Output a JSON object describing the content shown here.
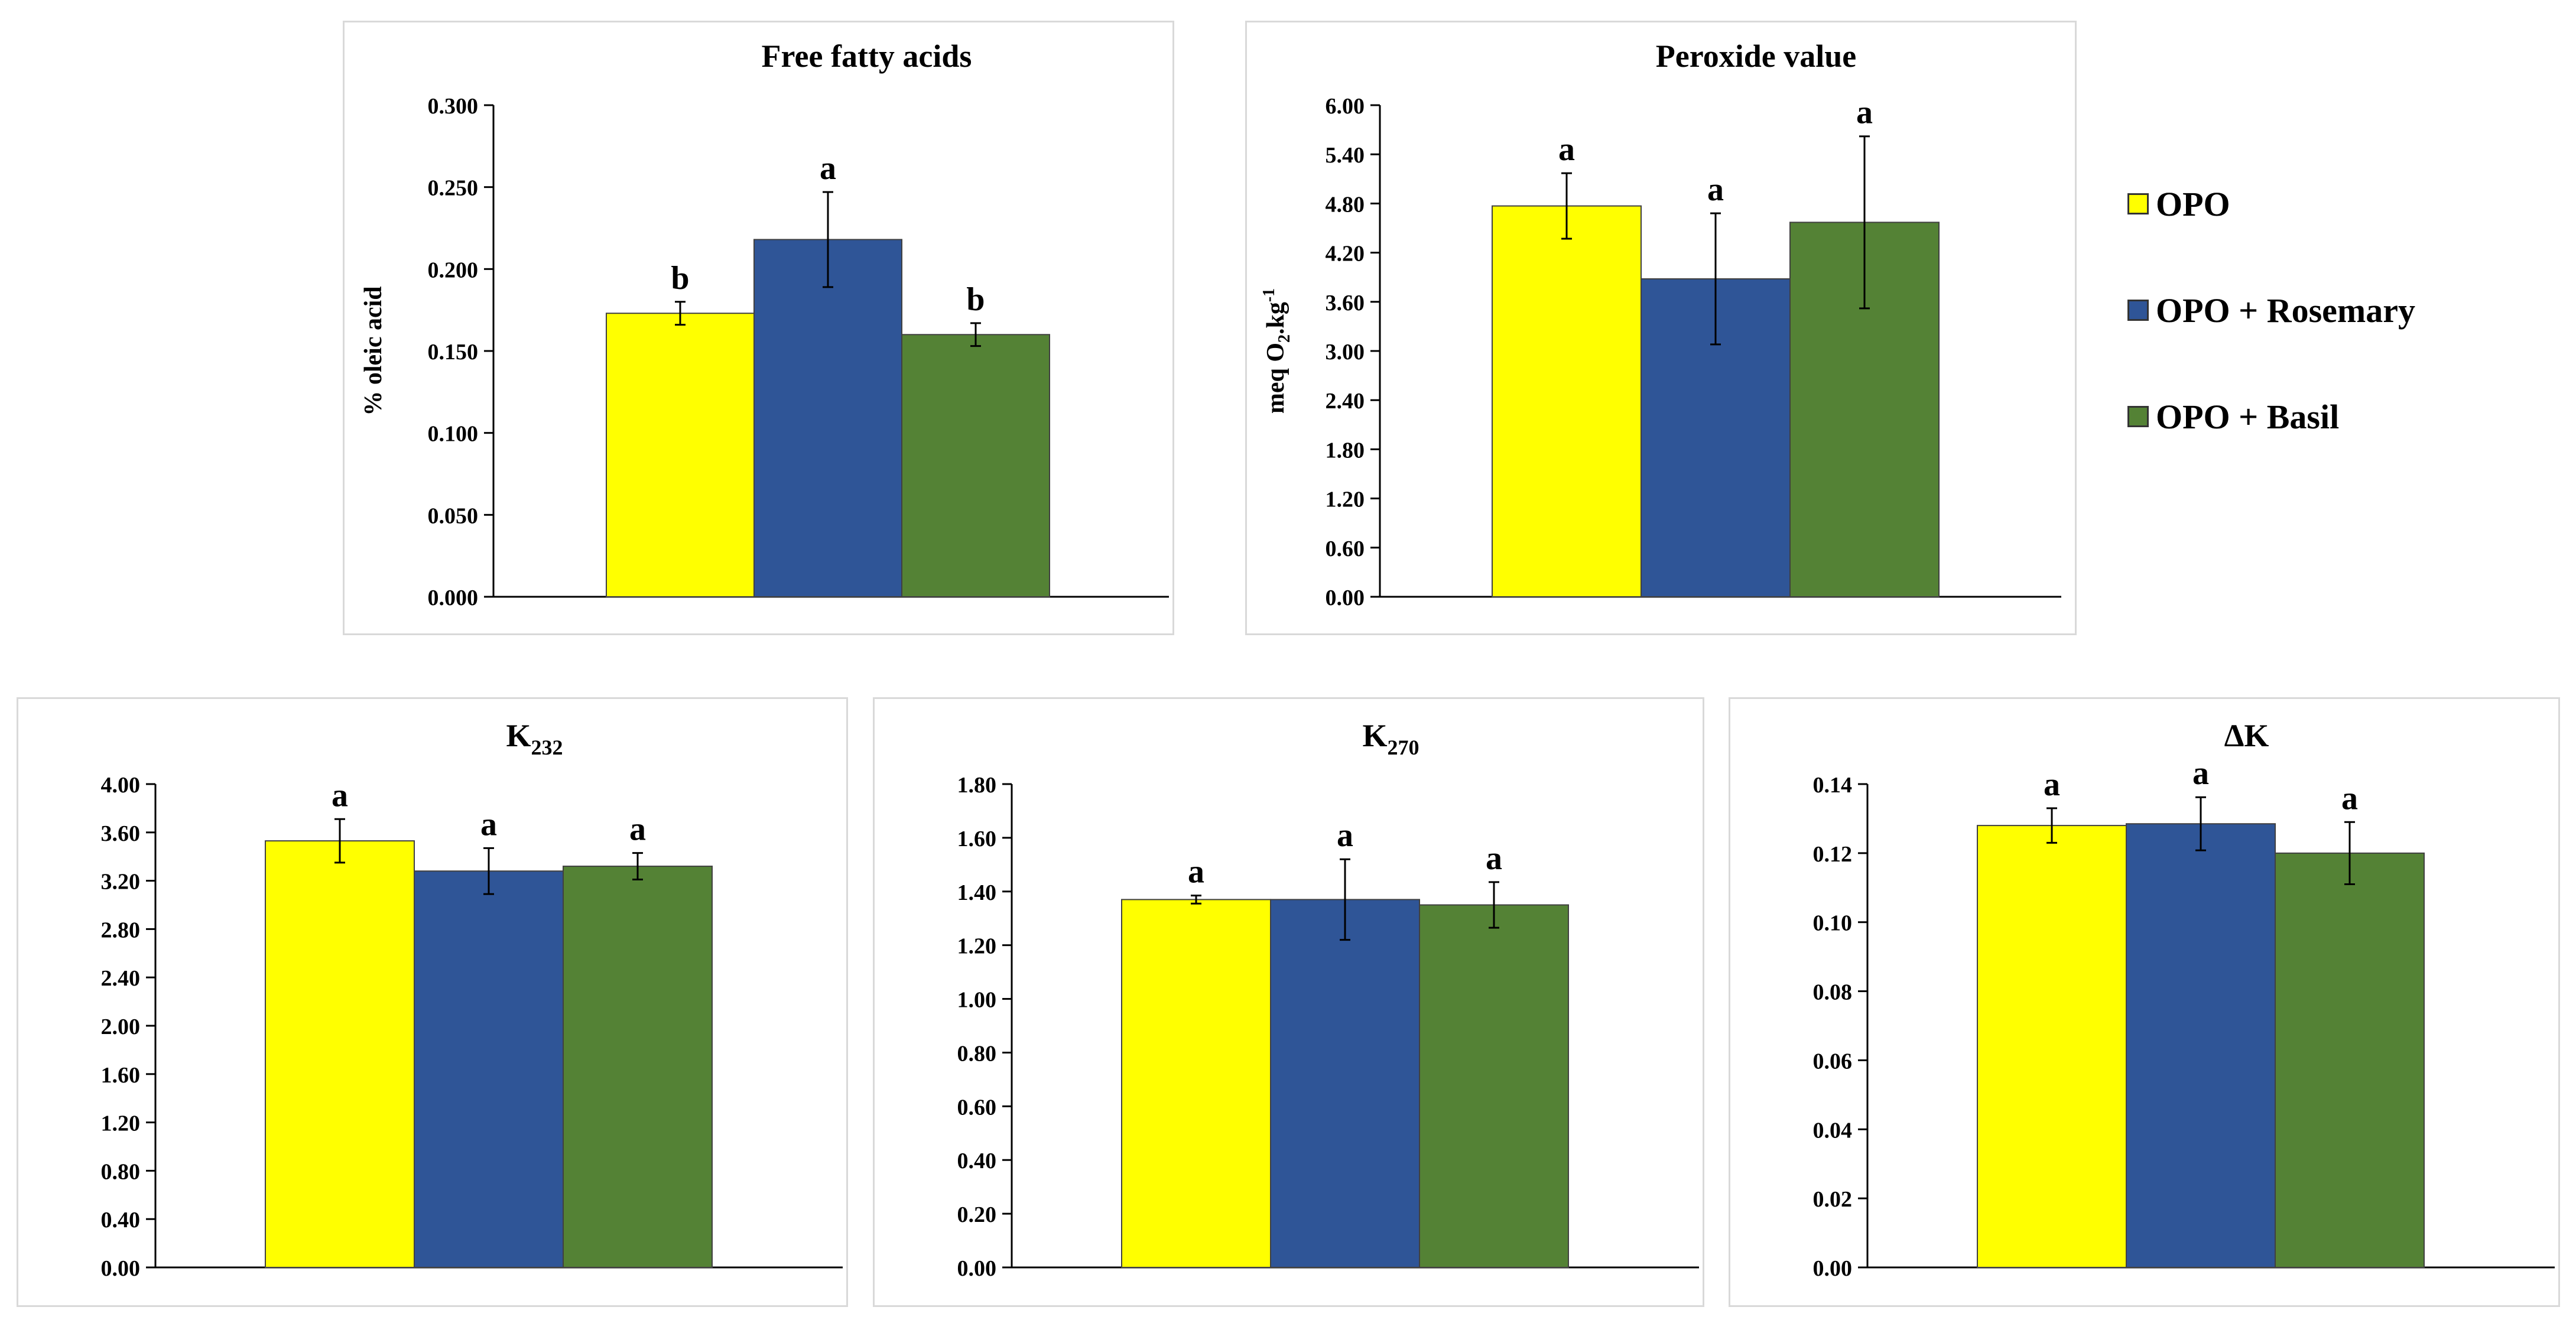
{
  "series_names": [
    "OPO",
    "OPO + Rosemary",
    "OPO + Basil"
  ],
  "colors": {
    "OPO": "#ffff00",
    "OPO + Rosemary": "#2f5597",
    "OPO + Basil": "#548235",
    "axis": "#000000",
    "errorbar": "#000000"
  },
  "chart_data": [
    {
      "type": "bar",
      "title": "Free fatty acids",
      "ylabel": "% oleic acid",
      "xlabel": "",
      "ylim": [
        0,
        0.3
      ],
      "ytick_values": [
        0,
        0.05,
        0.1,
        0.15,
        0.2,
        0.25,
        0.3
      ],
      "ytick_labels": [
        "0.000",
        "0.050",
        "0.100",
        "0.150",
        "0.200",
        "0.250",
        "0.300"
      ],
      "series": [
        {
          "name": "OPO",
          "values": [
            0.173
          ],
          "errors": [
            0.007
          ],
          "labels": [
            "b"
          ]
        },
        {
          "name": "OPO + Rosemary",
          "values": [
            0.218
          ],
          "errors": [
            0.029
          ],
          "labels": [
            "a"
          ]
        },
        {
          "name": "OPO + Basil",
          "values": [
            0.16
          ],
          "errors": [
            0.007
          ],
          "labels": [
            "b"
          ]
        }
      ]
    },
    {
      "type": "bar",
      "title": "Peroxide value",
      "ylabel": "meq O2.kg-1",
      "ylabel_parts": {
        "base": "meq O",
        "sub": "2",
        "mid": ".kg",
        "sup": "-1"
      },
      "xlabel": "",
      "ylim": [
        0,
        6
      ],
      "ytick_values": [
        0,
        0.6,
        1.2,
        1.8,
        2.4,
        3.0,
        3.6,
        4.2,
        4.8,
        5.4,
        6.0
      ],
      "ytick_labels": [
        "0.00",
        "0.60",
        "1.20",
        "1.80",
        "2.40",
        "3.00",
        "3.60",
        "4.20",
        "4.80",
        "5.40",
        "6.00"
      ],
      "series": [
        {
          "name": "OPO",
          "values": [
            4.77
          ],
          "errors": [
            0.4
          ],
          "labels": [
            "a"
          ]
        },
        {
          "name": "OPO + Rosemary",
          "values": [
            3.88
          ],
          "errors": [
            0.8
          ],
          "labels": [
            "a"
          ]
        },
        {
          "name": "OPO + Basil",
          "values": [
            4.57
          ],
          "errors": [
            1.05
          ],
          "labels": [
            "a"
          ]
        }
      ]
    },
    {
      "type": "bar",
      "title": "K232",
      "title_parts": {
        "base": "K",
        "sub": "232"
      },
      "ylabel": "",
      "xlabel": "",
      "ylim": [
        0,
        4
      ],
      "ytick_values": [
        0,
        0.4,
        0.8,
        1.2,
        1.6,
        2.0,
        2.4,
        2.8,
        3.2,
        3.6,
        4.0
      ],
      "ytick_labels": [
        "0.00",
        "0.40",
        "0.80",
        "1.20",
        "1.60",
        "2.00",
        "2.40",
        "2.80",
        "3.20",
        "3.60",
        "4.00"
      ],
      "series": [
        {
          "name": "OPO",
          "values": [
            3.53
          ],
          "errors": [
            0.18
          ],
          "labels": [
            "a"
          ]
        },
        {
          "name": "OPO + Rosemary",
          "values": [
            3.28
          ],
          "errors": [
            0.19
          ],
          "labels": [
            "a"
          ]
        },
        {
          "name": "OPO + Basil",
          "values": [
            3.32
          ],
          "errors": [
            0.11
          ],
          "labels": [
            "a"
          ]
        }
      ]
    },
    {
      "type": "bar",
      "title": "K270",
      "title_parts": {
        "base": "K",
        "sub": "270"
      },
      "ylabel": "",
      "xlabel": "",
      "ylim": [
        0,
        1.8
      ],
      "ytick_values": [
        0,
        0.2,
        0.4,
        0.6,
        0.8,
        1.0,
        1.2,
        1.4,
        1.6,
        1.8
      ],
      "ytick_labels": [
        "0.00",
        "0.20",
        "0.40",
        "0.60",
        "0.80",
        "1.00",
        "1.20",
        "1.40",
        "1.60",
        "1.80"
      ],
      "series": [
        {
          "name": "OPO",
          "values": [
            1.37
          ],
          "errors": [
            0.015
          ],
          "labels": [
            "a"
          ]
        },
        {
          "name": "OPO + Rosemary",
          "values": [
            1.37
          ],
          "errors": [
            0.15
          ],
          "labels": [
            "a"
          ]
        },
        {
          "name": "OPO + Basil",
          "values": [
            1.35
          ],
          "errors": [
            0.085
          ],
          "labels": [
            "a"
          ]
        }
      ]
    },
    {
      "type": "bar",
      "title": "ΔK",
      "ylabel": "",
      "xlabel": "",
      "ylim": [
        0,
        0.14
      ],
      "ytick_values": [
        0,
        0.02,
        0.04,
        0.06,
        0.08,
        0.1,
        0.12,
        0.14
      ],
      "ytick_labels": [
        "0.00",
        "0.02",
        "0.04",
        "0.06",
        "0.08",
        "0.10",
        "0.12",
        "0.14"
      ],
      "series": [
        {
          "name": "OPO",
          "values": [
            0.128
          ],
          "errors": [
            0.005
          ],
          "labels": [
            "a"
          ]
        },
        {
          "name": "OPO + Rosemary",
          "values": [
            0.1285
          ],
          "errors": [
            0.0077
          ],
          "labels": [
            "a"
          ]
        },
        {
          "name": "OPO + Basil",
          "values": [
            0.12
          ],
          "errors": [
            0.009
          ],
          "labels": [
            "a"
          ]
        }
      ]
    }
  ]
}
